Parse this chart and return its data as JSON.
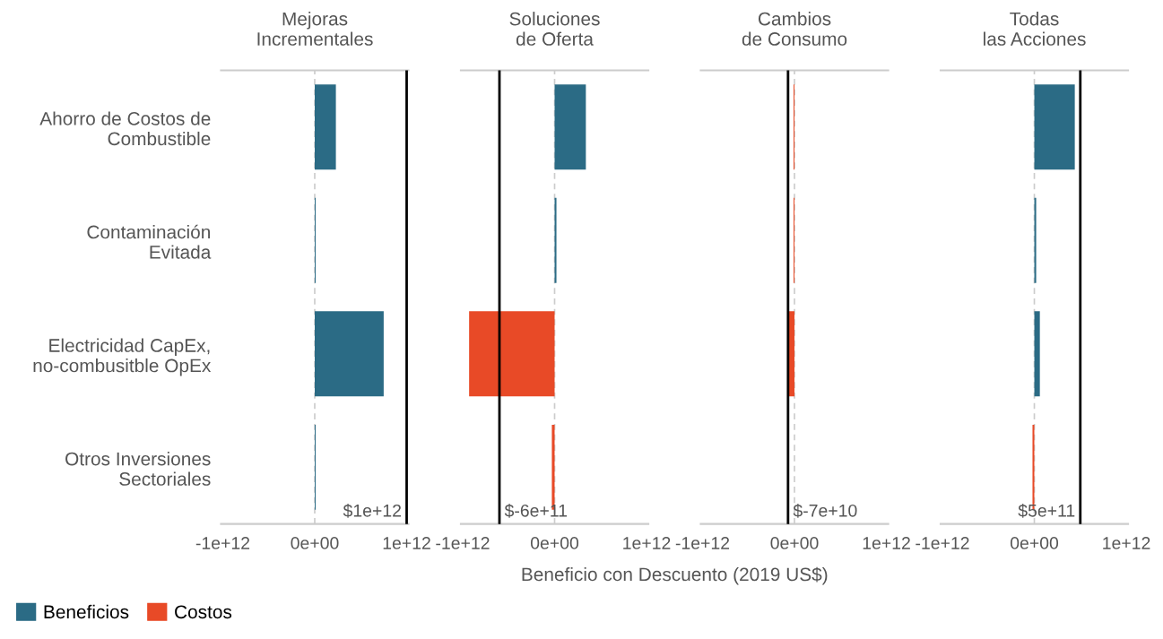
{
  "chart_data": [
    {
      "type": "bar",
      "orientation": "horizontal",
      "title": "Mejoras\nIncrementales",
      "categories": [
        "Ahorro de Costos de\nCombustible",
        "Contaminación\nEvitada",
        "Electricidad CapEx,\nno-combusitble OpEx",
        "Otros Inversiones\nSectoriales"
      ],
      "series": [
        {
          "name": "Beneficios",
          "color": "#2b6b85",
          "values": [
            230000000000.0,
            10000000000.0,
            750000000000.0,
            10000000000.0
          ]
        },
        {
          "name": "Costos",
          "color": "#e84a27",
          "values": [
            null,
            null,
            null,
            null
          ]
        }
      ],
      "xlim": [
        -1020000000000.0,
        1020000000000.0
      ],
      "xticks": [
        {
          "value": -1000000000000.0,
          "label": "-1e+12"
        },
        {
          "value": 0,
          "label": "0e+00"
        },
        {
          "value": 1000000000000.0,
          "label": "1e+12"
        }
      ],
      "ref_lines": [
        {
          "axis": "x",
          "value": 0,
          "color": "#cccccc",
          "line_style": "dashed"
        },
        {
          "axis": "x",
          "value": 1000000000000.0,
          "label": "$1e+12",
          "color": "#000000",
          "line_style": "solid"
        }
      ],
      "legend": "bottom left"
    },
    {
      "type": "bar",
      "orientation": "horizontal",
      "title": "Soluciones\nde Oferta",
      "categories": [
        null,
        null,
        null,
        null
      ],
      "series": [
        {
          "color": "#2b6b85",
          "values": [
            340000000000.0,
            20000000000.0,
            null,
            null
          ]
        },
        {
          "color": "#e84a27",
          "values": [
            null,
            null,
            -930000000000.0,
            -30000000000.0
          ]
        }
      ],
      "xlim": [
        -1020000000000.0,
        1020000000000.0
      ],
      "xticks": [
        {
          "value": -1000000000000.0,
          "label": "-1e+12"
        },
        {
          "value": 0,
          "label": "0e+00"
        },
        {
          "value": 1000000000000.0,
          "label": "1e+12"
        }
      ],
      "ref_lines": [
        {
          "axis": "x",
          "value": 0,
          "color": "#cccccc",
          "line_style": "dashed"
        },
        {
          "axis": "x",
          "value": -600000000000.0,
          "label": "$-6e+11",
          "color": "#000000",
          "line_style": "solid"
        }
      ],
      "tick_labels": "x",
      "xlabel": "Beneficio con Descuento (2019 US$)"
    },
    {
      "type": "bar",
      "orientation": "horizontal",
      "title": "Cambios\nde Consumo",
      "categories": [
        null,
        null,
        null,
        null
      ],
      "series": [
        {
          "color": "#e84a27",
          "values": [
            -10000000000.0,
            -10000000000.0,
            -60000000000.0,
            null
          ]
        }
      ],
      "xlim": [
        -1020000000000.0,
        1020000000000.0
      ],
      "xticks": [
        {
          "value": -1000000000000.0,
          "label": "-1e+12"
        },
        {
          "value": 0,
          "label": "0e+00"
        },
        {
          "value": 1000000000000.0,
          "label": "1e+12"
        }
      ],
      "ref_lines": [
        {
          "axis": "x",
          "value": 0,
          "color": "#cccccc",
          "line_style": "dashed"
        },
        {
          "axis": "x",
          "value": -70000000000.0,
          "label": "$-7e+10",
          "color": "#000000",
          "line_style": "solid"
        }
      ],
      "tick_labels": "x"
    },
    {
      "type": "bar",
      "orientation": "horizontal",
      "title": "Todas\nlas Acciones",
      "categories": [
        null,
        null,
        null,
        null
      ],
      "series": [
        {
          "color": "#2b6b85",
          "values": [
            440000000000.0,
            20000000000.0,
            60000000000.0,
            null
          ]
        },
        {
          "color": "#e84a27",
          "values": [
            null,
            null,
            null,
            -20000000000.0
          ]
        }
      ],
      "xlim": [
        -1020000000000.0,
        1020000000000.0
      ],
      "xticks": [
        {
          "value": -1000000000000.0,
          "label": "-1e+12"
        },
        {
          "value": 0,
          "label": "0e+00"
        },
        {
          "value": 1000000000000.0,
          "label": "1e+12"
        }
      ],
      "ref_lines": [
        {
          "axis": "x",
          "value": 0,
          "color": "#cccccc",
          "line_style": "dashed"
        },
        {
          "axis": "x",
          "value": 500000000000.0,
          "label": "$5e+11",
          "color": "#000000",
          "line_style": "solid"
        }
      ],
      "tick_labels": "x"
    }
  ]
}
